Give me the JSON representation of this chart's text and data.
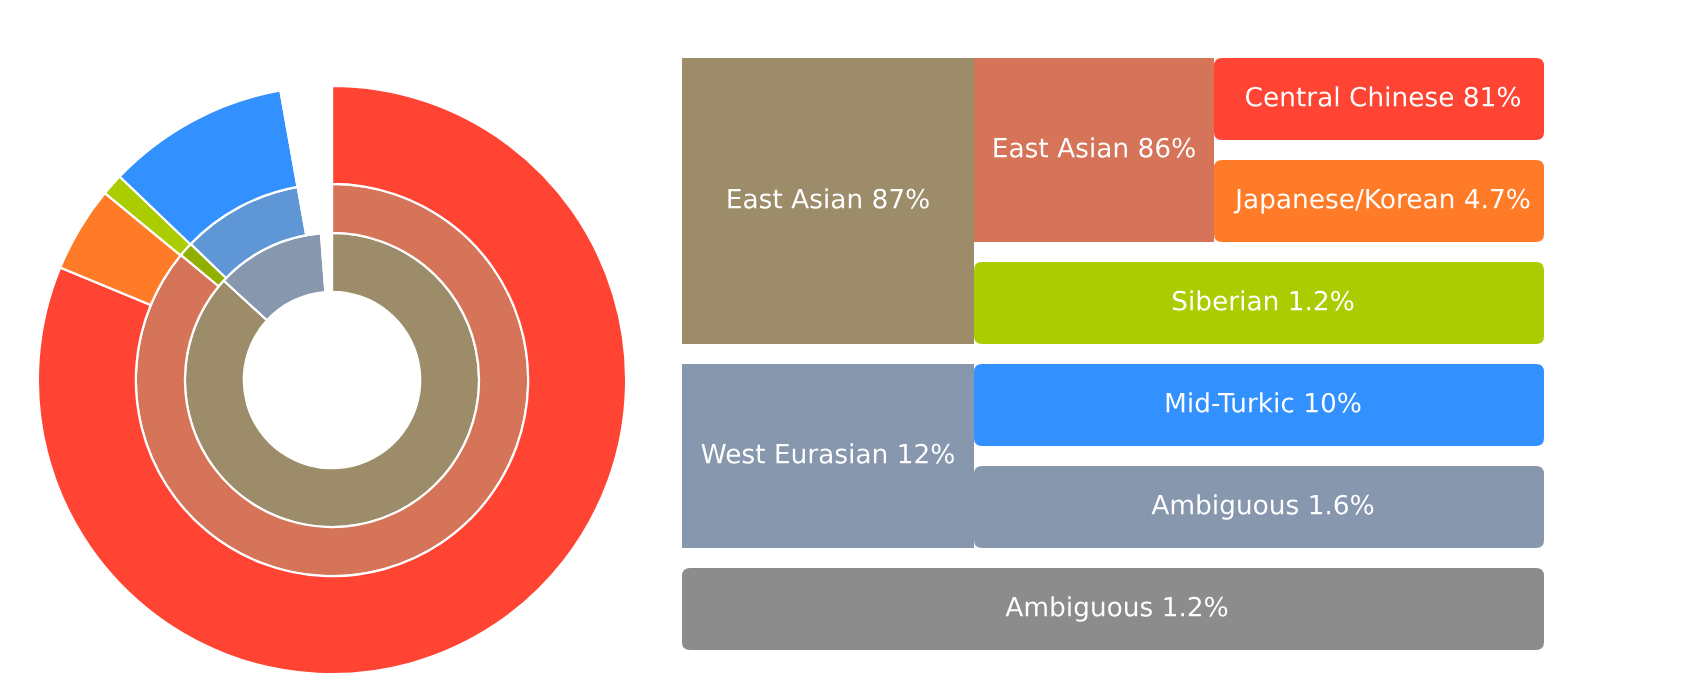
{
  "chart_data": [
    {
      "type": "donut",
      "series": [
        {
          "values": [
            87,
            12,
            1.2
          ],
          "colors": [
            "#9c8c6a",
            "#8797ad",
            "#ffffff"
          ]
        },
        {
          "values": [
            86,
            1.2,
            10,
            1.6,
            1.2
          ],
          "colors": [
            "#d6745a",
            "#8fb000",
            "#5f96d6",
            "#ffffff",
            "#ffffff"
          ]
        },
        {
          "values": [
            81,
            4.7,
            1.2,
            10,
            1.6,
            1.2
          ],
          "colors": [
            "#ff4433",
            "#ff7b27",
            "#aacc00",
            "#3390ff",
            "#ffffff",
            "#ffffff"
          ]
        }
      ]
    },
    {
      "type": "other",
      "annotations": [
        "East Asian 87%",
        "East Asian 86%",
        "Central Chinese 81%",
        "Japanese/Korean 4.7%",
        "Siberian 1.2%",
        "West Eurasian 12%",
        "Mid-Turkic 10%",
        "Ambiguous 1.6%",
        "Ambiguous 1.2%"
      ],
      "colors": [
        "#9c8c6a",
        "#d6745a",
        "#ff4433",
        "#ff7b27",
        "#aacc00",
        "#8797ad",
        "#3390ff",
        "#8797ad",
        "#8c8c8c"
      ]
    }
  ]
}
